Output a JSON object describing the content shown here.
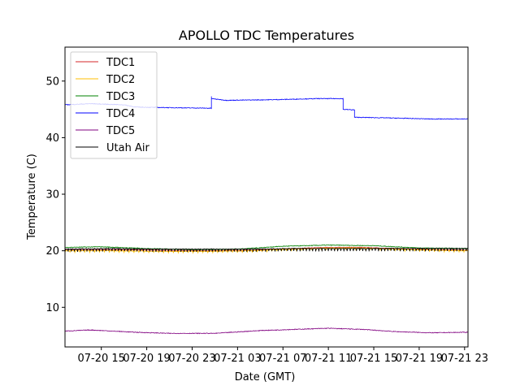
{
  "chart_data": {
    "type": "line",
    "title": "APOLLO TDC Temperatures",
    "xlabel": "Date (GMT)",
    "ylabel": "Temperature (C)",
    "xlim": [
      11.8,
      47.3
    ],
    "ylim": [
      3,
      56
    ],
    "x_unit": "hours since 07-20 00:00 GMT",
    "xticks": [
      {
        "value": 15,
        "label": "07-20 15"
      },
      {
        "value": 19,
        "label": "07-20 19"
      },
      {
        "value": 23,
        "label": "07-20 23"
      },
      {
        "value": 27,
        "label": "07-21 03"
      },
      {
        "value": 31,
        "label": "07-21 07"
      },
      {
        "value": 35,
        "label": "07-21 11"
      },
      {
        "value": 39,
        "label": "07-21 15"
      },
      {
        "value": 43,
        "label": "07-21 19"
      },
      {
        "value": 47,
        "label": "07-21 23"
      }
    ],
    "yticks": [
      10,
      20,
      30,
      40,
      50
    ],
    "legend_position": "top-left",
    "series": [
      {
        "name": "TDC1",
        "color": "#d62728",
        "x": [
          11.8,
          16,
          20,
          24,
          28,
          32,
          35,
          38,
          42,
          47.3
        ],
        "y": [
          20.2,
          20.2,
          20.1,
          20.0,
          20.1,
          20.4,
          20.6,
          20.6,
          20.3,
          20.1
        ]
      },
      {
        "name": "TDC2",
        "color": "#ffbf00",
        "x": [
          11.8,
          16,
          20,
          24,
          28,
          32,
          35,
          38,
          42,
          47.3
        ],
        "y": [
          20.0,
          20.0,
          19.9,
          19.9,
          20.0,
          20.3,
          20.5,
          20.5,
          20.2,
          20.0
        ]
      },
      {
        "name": "TDC3",
        "color": "#008000",
        "x": [
          11.8,
          15,
          19,
          23,
          27,
          31,
          35,
          39,
          43,
          47.3
        ],
        "y": [
          20.6,
          20.7,
          20.4,
          20.2,
          20.3,
          20.8,
          21.0,
          20.9,
          20.5,
          20.4
        ]
      },
      {
        "name": "TDC4",
        "color": "#0000ff",
        "x": [
          11.8,
          14,
          17,
          18,
          21,
          24.7,
          24.7,
          26,
          30,
          34,
          36.3,
          36.3,
          37.3,
          37.3,
          40,
          44,
          47.3
        ],
        "y": [
          45.8,
          46.0,
          45.8,
          45.4,
          45.3,
          45.2,
          46.9,
          46.6,
          46.7,
          46.9,
          46.9,
          45.0,
          44.9,
          43.6,
          43.5,
          43.3,
          43.3
        ]
      },
      {
        "name": "TDC5",
        "color": "#800080",
        "x": [
          11.8,
          14,
          18,
          21,
          25,
          29,
          32,
          35,
          38,
          41,
          44,
          47.3
        ],
        "y": [
          5.8,
          6.0,
          5.6,
          5.4,
          5.4,
          5.9,
          6.1,
          6.3,
          6.1,
          5.7,
          5.5,
          5.6
        ]
      },
      {
        "name": "Utah Air",
        "color": "#000000",
        "x": [
          11.8,
          16,
          20,
          24,
          28,
          32,
          36,
          40,
          44,
          47.3
        ],
        "y": [
          20.3,
          20.4,
          20.3,
          20.3,
          20.3,
          20.4,
          20.4,
          20.4,
          20.4,
          20.4
        ]
      }
    ]
  }
}
